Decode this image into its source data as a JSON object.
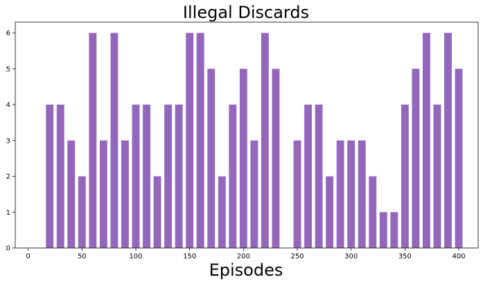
{
  "chart_data": {
    "type": "bar",
    "title": "Illegal Discards",
    "xlabel": "Episodes",
    "ylabel": "",
    "xlim": [
      -12,
      418
    ],
    "ylim": [
      0,
      6.3
    ],
    "x_ticks": [
      0,
      50,
      100,
      150,
      200,
      250,
      300,
      350,
      400
    ],
    "y_ticks": [
      0,
      1,
      2,
      3,
      4,
      5,
      6
    ],
    "bar_width": 7,
    "bar_color": "#9467bd",
    "grid": false,
    "x": [
      20,
      30,
      40,
      50,
      60,
      70,
      80,
      90,
      100,
      110,
      120,
      130,
      140,
      150,
      160,
      170,
      180,
      190,
      200,
      210,
      220,
      230,
      240,
      250,
      260,
      270,
      280,
      290,
      300,
      310,
      320,
      330,
      340,
      350,
      360,
      370,
      380,
      390,
      400
    ],
    "values": [
      4,
      4,
      3,
      2,
      6,
      3,
      6,
      3,
      4,
      4,
      2,
      4,
      4,
      6,
      6,
      5,
      2,
      4,
      5,
      3,
      6,
      5,
      0,
      3,
      4,
      4,
      2,
      3,
      3,
      3,
      2,
      1,
      1,
      4,
      5,
      6,
      4,
      6,
      5
    ]
  }
}
